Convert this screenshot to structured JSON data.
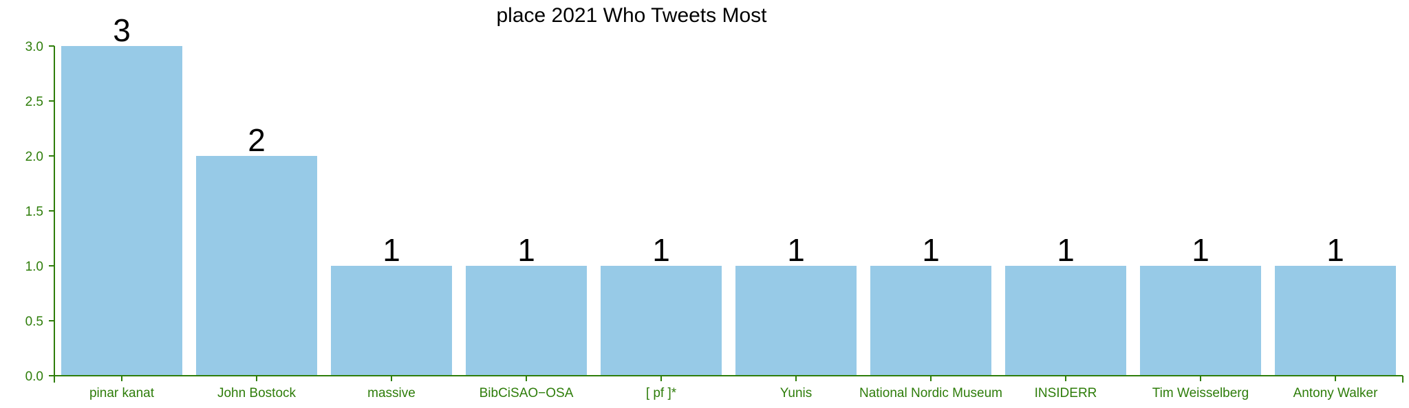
{
  "chart_data": {
    "type": "bar",
    "title": "place 2021 Who Tweets Most",
    "xlabel": "",
    "ylabel": "",
    "categories": [
      "pinar kanat",
      "John Bostock",
      "massive",
      "BibCiSAO−OSA",
      "[ pf ]*",
      "Yunis",
      "National Nordic Museum",
      "INSIDERR",
      "Tim Weisselberg",
      "Antony Walker"
    ],
    "values": [
      3,
      2,
      1,
      1,
      1,
      1,
      1,
      1,
      1,
      1
    ],
    "ylim": [
      0,
      3
    ],
    "yticks": [
      "0.0",
      "0.5",
      "1.0",
      "1.5",
      "2.0",
      "2.5",
      "3.0"
    ],
    "grid": false,
    "colors": {
      "bar": "#97cae7",
      "axis": "#2e7d0a",
      "text": "#000000"
    }
  }
}
